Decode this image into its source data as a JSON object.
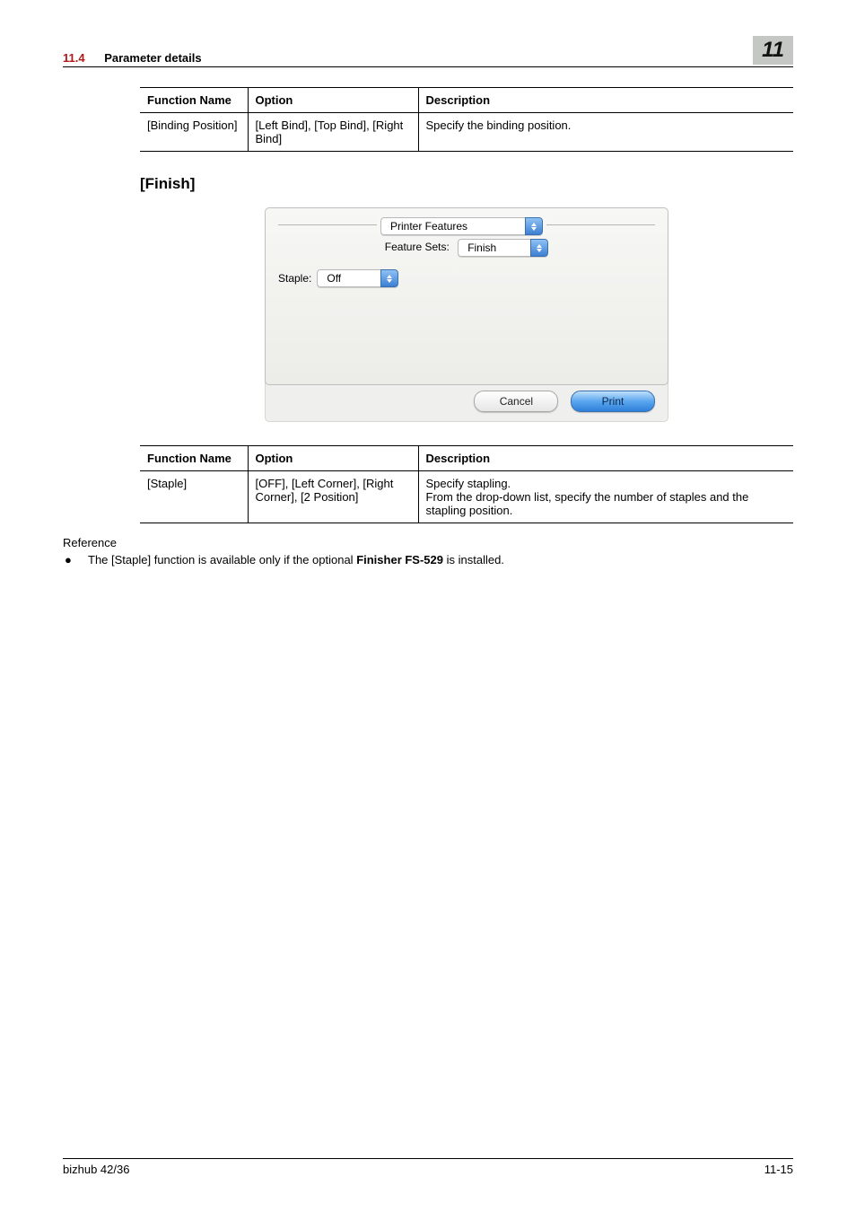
{
  "header": {
    "section_number": "11.4",
    "section_title": "Parameter details",
    "chapter_badge": "11"
  },
  "table1": {
    "headers": {
      "fn": "Function Name",
      "opt": "Option",
      "desc": "Description"
    },
    "rows": [
      {
        "fn": "[Binding Position]",
        "opt": "[Left Bind], [Top Bind], [Right Bind]",
        "desc": "Specify the binding position."
      }
    ]
  },
  "heading_finish": "[Finish]",
  "dialog": {
    "printer_features_legend": "Printer Features",
    "feature_sets_label": "Feature Sets:",
    "feature_sets_value": "Finish",
    "staple_label": "Staple:",
    "staple_value": "Off",
    "cancel": "Cancel",
    "print": "Print",
    "colors": {
      "panel_bg_top": "#f7f7f5",
      "panel_bg_bottom": "#ecece8",
      "select_btn_top": "#8fc2f4",
      "select_btn_bottom": "#3c7fd3",
      "print_btn_top": "#bfe0fb",
      "print_btn_bottom": "#2e7fda"
    }
  },
  "table2": {
    "headers": {
      "fn": "Function Name",
      "opt": "Option",
      "desc": "Description"
    },
    "rows": [
      {
        "fn": "[Staple]",
        "opt": "[OFF], [Left Corner], [Right Corner], [2 Position]",
        "desc": "Specify stapling.\nFrom the drop-down list, specify the number of staples and the stapling position."
      }
    ]
  },
  "reference": {
    "label": "Reference",
    "bullet_pre": "The [Staple] function is available only if the optional ",
    "bullet_bold": "Finisher FS-529",
    "bullet_post": " is installed."
  },
  "footer": {
    "left": "bizhub 42/36",
    "right": "11-15"
  },
  "colors": {
    "section_num": "#b01818",
    "badge_bg": "#c5c7c4"
  }
}
